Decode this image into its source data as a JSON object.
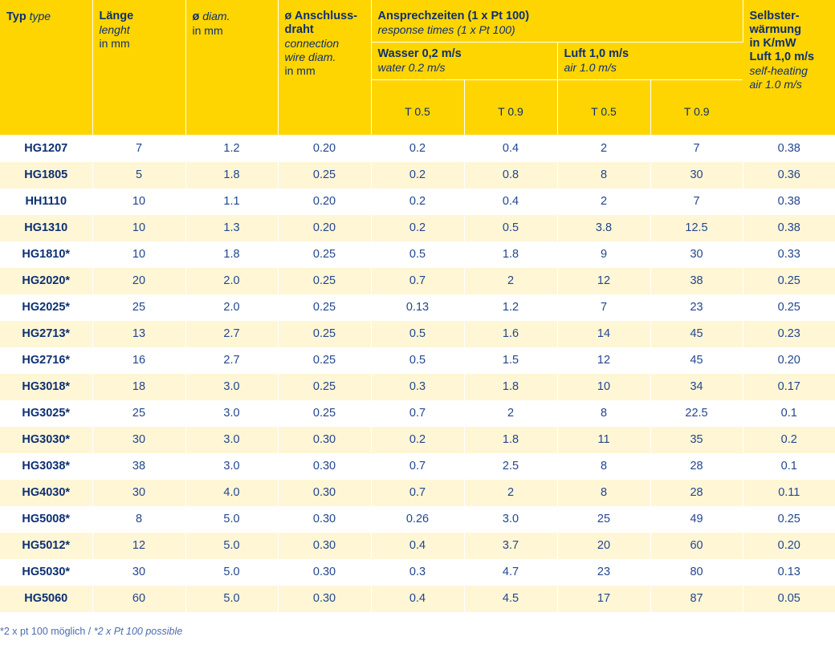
{
  "header": {
    "typ": "Typ",
    "typ_en": "type",
    "laenge": "Länge",
    "laenge_en": "lenght",
    "laenge_unit": "in mm",
    "diam": "ø",
    "diam_en": "diam.",
    "diam_unit": "in mm",
    "wire": "ø Anschluss-\ndraht",
    "wire_en": "connection\nwire diam.",
    "wire_unit": "in mm",
    "resp": "Ansprechzeiten (1 x Pt 100)",
    "resp_en": "response times (1 x Pt 100)",
    "water": "Wasser 0,2 m/s",
    "water_en": "water 0.2 m/s",
    "air": "Luft 1,0 m/s",
    "air_en": "air 1.0 m/s",
    "t05": "T 0.5",
    "t09": "T 0.9",
    "self": "Selbster-\nwärmung\nin K/mW\nLuft 1,0 m/s",
    "self_en": "self-heating\nair 1.0 m/s"
  },
  "rows": [
    [
      "HG1207",
      "7",
      "1.2",
      "0.20",
      "0.2",
      "0.4",
      "2",
      "7",
      "0.38"
    ],
    [
      "HG1805",
      "5",
      "1.8",
      "0.25",
      "0.2",
      "0.8",
      "8",
      "30",
      "0.36"
    ],
    [
      "HH1110",
      "10",
      "1.1",
      "0.20",
      "0.2",
      "0.4",
      "2",
      "7",
      "0.38"
    ],
    [
      "HG1310",
      "10",
      "1.3",
      "0.20",
      "0.2",
      "0.5",
      "3.8",
      "12.5",
      "0.38"
    ],
    [
      "HG1810*",
      "10",
      "1.8",
      "0.25",
      "0.5",
      "1.8",
      "9",
      "30",
      "0.33"
    ],
    [
      "HG2020*",
      "20",
      "2.0",
      "0.25",
      "0.7",
      "2",
      "12",
      "38",
      "0.25"
    ],
    [
      "HG2025*",
      "25",
      "2.0",
      "0.25",
      "0.13",
      "1.2",
      "7",
      "23",
      "0.25"
    ],
    [
      "HG2713*",
      "13",
      "2.7",
      "0.25",
      "0.5",
      "1.6",
      "14",
      "45",
      "0.23"
    ],
    [
      "HG2716*",
      "16",
      "2.7",
      "0.25",
      "0.5",
      "1.5",
      "12",
      "45",
      "0.20"
    ],
    [
      "HG3018*",
      "18",
      "3.0",
      "0.25",
      "0.3",
      "1.8",
      "10",
      "34",
      "0.17"
    ],
    [
      "HG3025*",
      "25",
      "3.0",
      "0.25",
      "0.7",
      "2",
      "8",
      "22.5",
      "0.1"
    ],
    [
      "HG3030*",
      "30",
      "3.0",
      "0.30",
      "0.2",
      "1.8",
      "11",
      "35",
      "0.2"
    ],
    [
      "HG3038*",
      "38",
      "3.0",
      "0.30",
      "0.7",
      "2.5",
      "8",
      "28",
      "0.1"
    ],
    [
      "HG4030*",
      "30",
      "4.0",
      "0.30",
      "0.7",
      "2",
      "8",
      "28",
      "0.11"
    ],
    [
      "HG5008*",
      "8",
      "5.0",
      "0.30",
      "0.26",
      "3.0",
      "25",
      "49",
      "0.25"
    ],
    [
      "HG5012*",
      "12",
      "5.0",
      "0.30",
      "0.4",
      "3.7",
      "20",
      "60",
      "0.20"
    ],
    [
      "HG5030*",
      "30",
      "5.0",
      "0.30",
      "0.3",
      "4.7",
      "23",
      "80",
      "0.13"
    ],
    [
      "HG5060",
      "60",
      "5.0",
      "0.30",
      "0.4",
      "4.5",
      "17",
      "87",
      "0.05"
    ]
  ],
  "footnote": {
    "de": "*2 x pt 100 möglich / ",
    "en": "*2 x Pt 100 possible"
  }
}
